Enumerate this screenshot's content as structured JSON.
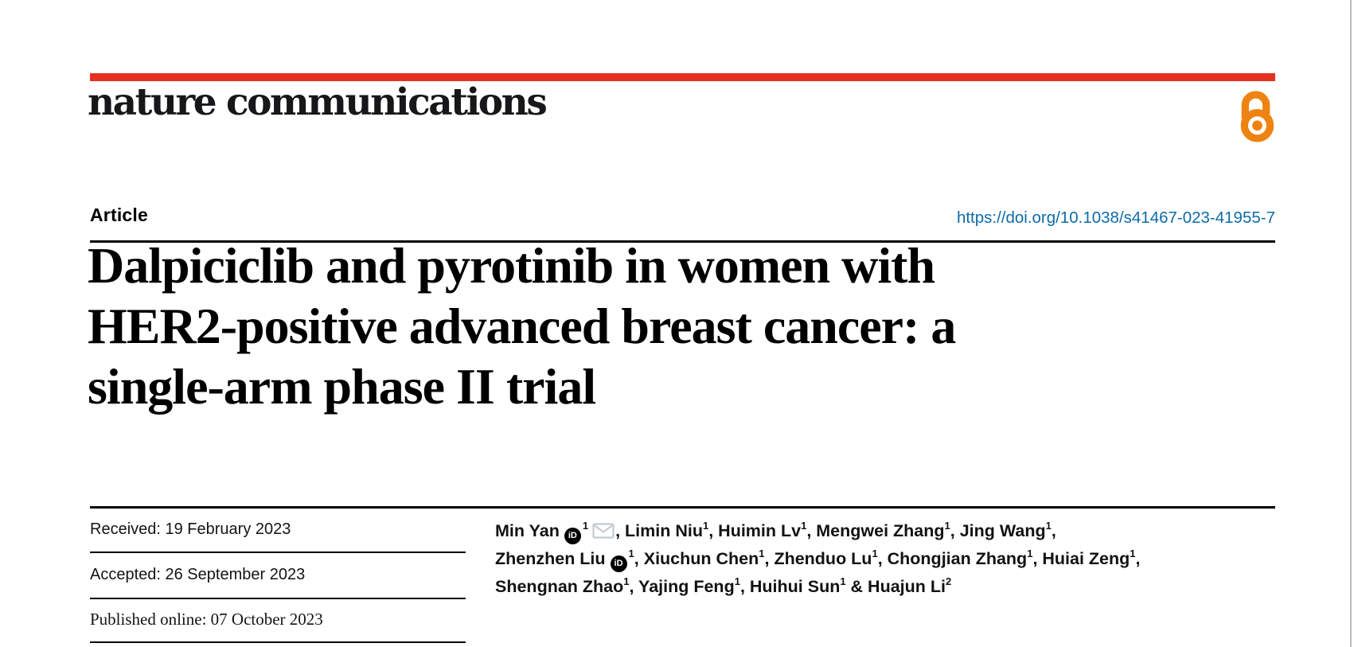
{
  "masthead": {
    "wordmark": "nature communications",
    "open_access_icon": "open-access-padlock-icon"
  },
  "article_header": {
    "section_label": "Article",
    "doi_url": "https://doi.org/10.1038/s41467-023-41955-7"
  },
  "title": {
    "lines": [
      "Dalpiciclib and pyrotinib in women with",
      "HER2-positive advanced breast cancer: a",
      "single-arm phase II trial"
    ]
  },
  "history": {
    "received": "Received: 19 February 2023",
    "accepted": "Accepted: 26 September 2023",
    "published_online": "Published online: 07 October 2023"
  },
  "authors": {
    "orcid_icon_label": "iD",
    "email_icon": "envelope-icon",
    "lines": [
      [
        {
          "t": "text",
          "v": "Min Yan"
        },
        {
          "t": "orcid"
        },
        {
          "t": "sup",
          "v": "1"
        },
        {
          "t": "mail"
        },
        {
          "t": "text",
          "v": ", Limin Niu"
        },
        {
          "t": "sup",
          "v": "1"
        },
        {
          "t": "text",
          "v": ", Huimin Lv"
        },
        {
          "t": "sup",
          "v": "1"
        },
        {
          "t": "text",
          "v": ", Mengwei Zhang"
        },
        {
          "t": "sup",
          "v": "1"
        },
        {
          "t": "text",
          "v": ", Jing Wang"
        },
        {
          "t": "sup",
          "v": "1"
        },
        {
          "t": "text",
          "v": ","
        }
      ],
      [
        {
          "t": "text",
          "v": "Zhenzhen Liu"
        },
        {
          "t": "orcid"
        },
        {
          "t": "sup",
          "v": "1"
        },
        {
          "t": "text",
          "v": ", Xiuchun Chen"
        },
        {
          "t": "sup",
          "v": "1"
        },
        {
          "t": "text",
          "v": ", Zhenduo Lu"
        },
        {
          "t": "sup",
          "v": "1"
        },
        {
          "t": "text",
          "v": ", Chongjian Zhang"
        },
        {
          "t": "sup",
          "v": "1"
        },
        {
          "t": "text",
          "v": ", Huiai Zeng"
        },
        {
          "t": "sup",
          "v": "1"
        },
        {
          "t": "text",
          "v": ","
        }
      ],
      [
        {
          "t": "text",
          "v": "Shengnan Zhao"
        },
        {
          "t": "sup",
          "v": "1"
        },
        {
          "t": "text",
          "v": ", Yajing Feng"
        },
        {
          "t": "sup",
          "v": "1"
        },
        {
          "t": "text",
          "v": ", Huihui Sun"
        },
        {
          "t": "sup",
          "v": "1"
        },
        {
          "t": "text",
          "v": " & Huajun Li"
        },
        {
          "t": "sup",
          "v": "2"
        }
      ]
    ]
  },
  "colors": {
    "brand_red": "#e53323",
    "link_blue": "#0e6ba8",
    "open_access_orange": "#ef8312",
    "envelope_gray": "#c4cbd2",
    "page_edge_gray": "#b9bdc0",
    "text_black": "#000000"
  }
}
